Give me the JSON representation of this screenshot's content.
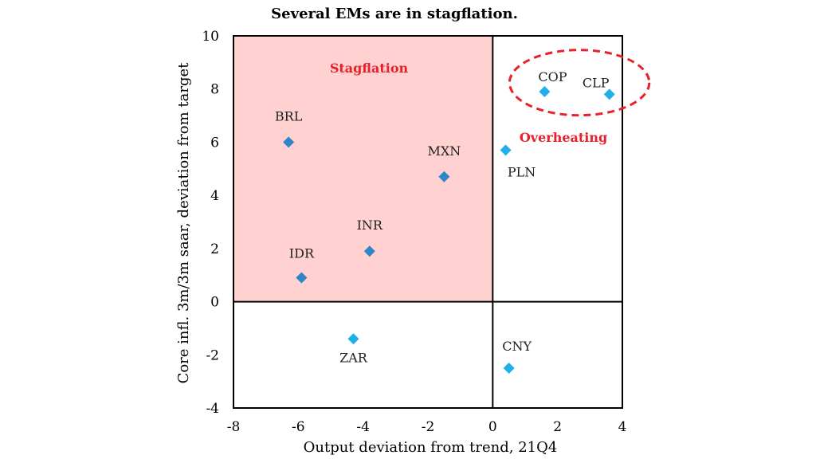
{
  "chart_data": {
    "type": "scatter",
    "title": "Several EMs are in stagflation.",
    "xlabel": "Output deviation from trend, 21Q4",
    "ylabel": "Core infl. 3m/3m saar, deviation from target",
    "xlim": [
      -8,
      4
    ],
    "ylim": [
      -4,
      10
    ],
    "xticks": [
      -8,
      -6,
      -4,
      -2,
      0,
      2,
      4
    ],
    "yticks": [
      -4,
      -2,
      0,
      2,
      4,
      6,
      8,
      10
    ],
    "grid": false,
    "points": [
      {
        "label": "BRL",
        "x": -6.3,
        "y": 6.0,
        "color": "#2e86c8"
      },
      {
        "label": "MXN",
        "x": -1.5,
        "y": 4.7,
        "color": "#2e86c8"
      },
      {
        "label": "INR",
        "x": -3.8,
        "y": 1.9,
        "color": "#2e86c8"
      },
      {
        "label": "IDR",
        "x": -5.9,
        "y": 0.9,
        "color": "#2e86c8"
      },
      {
        "label": "ZAR",
        "x": -4.3,
        "y": -1.4,
        "color": "#1fb0ec"
      },
      {
        "label": "CNY",
        "x": 0.5,
        "y": -2.5,
        "color": "#1fb0ec"
      },
      {
        "label": "PLN",
        "x": 0.4,
        "y": 5.7,
        "color": "#1fb0ec"
      },
      {
        "label": "COP",
        "x": 1.6,
        "y": 7.9,
        "color": "#1fb0ec"
      },
      {
        "label": "CLP",
        "x": 3.6,
        "y": 7.8,
        "color": "#1fb0ec"
      }
    ],
    "regions": {
      "stagflation": {
        "label": "Stagflation",
        "x": [
          -8,
          0
        ],
        "y": [
          0,
          10
        ],
        "fill": "#ffd1d1",
        "label_color": "#e8202a"
      },
      "overheating": {
        "label": "Overheating",
        "label_color": "#e8202a",
        "highlight_color": "#e8202a",
        "highlighted_points": [
          "COP",
          "CLP"
        ]
      }
    },
    "divider_lines": {
      "x": 0,
      "y": 0
    }
  }
}
